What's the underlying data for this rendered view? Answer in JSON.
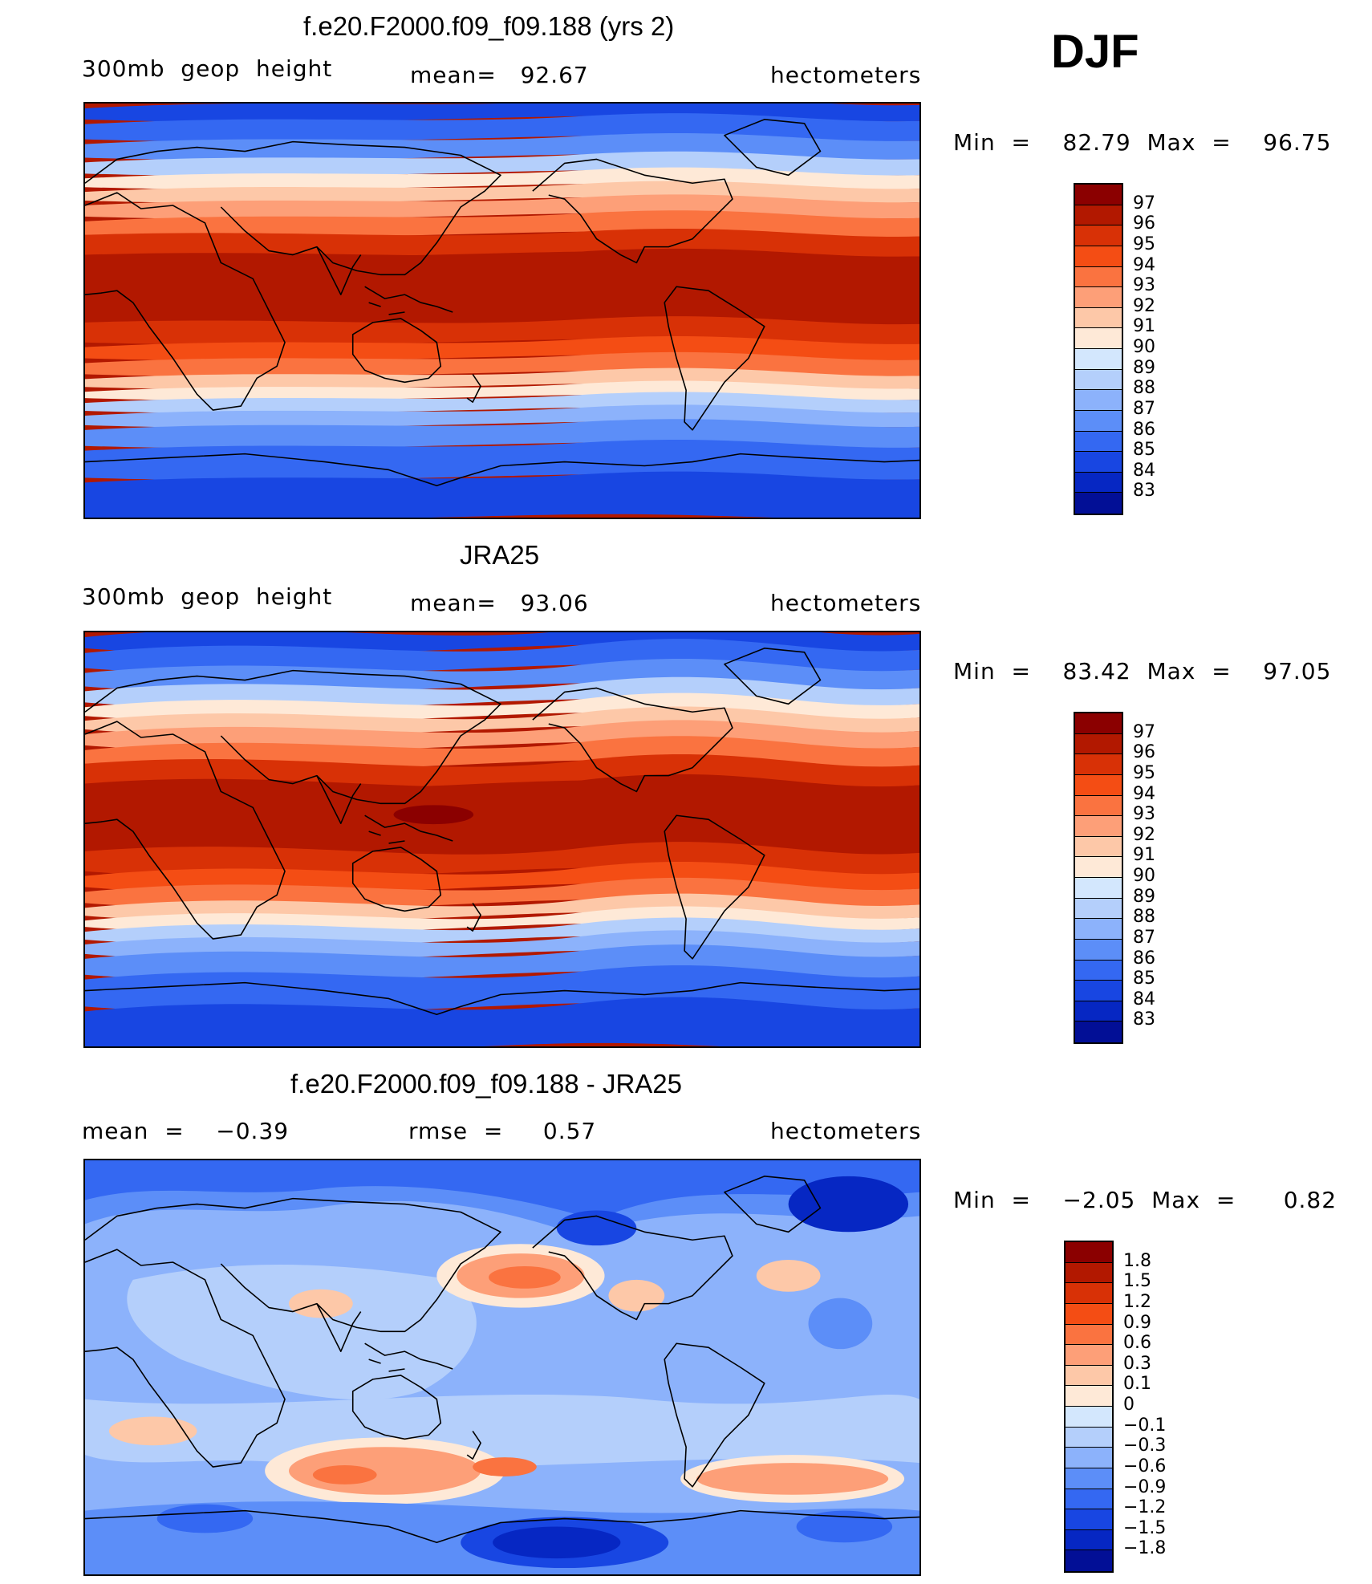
{
  "season": "DJF",
  "panels": [
    {
      "title": "f.e20.F2000.f09_f09.188 (yrs 2)",
      "left_label": "300mb  geop  height",
      "center_label": "mean=   92.67",
      "right_label": "hectometers",
      "minmax": "Min  =    82.79  Max  =    96.75",
      "field": "model",
      "colorbar": {
        "colors": [
          "#8b0000",
          "#b21800",
          "#d83106",
          "#f44d14",
          "#fa7340",
          "#fd9f78",
          "#fdc8a8",
          "#fee9d7",
          "#d3e7fd",
          "#b4cffb",
          "#8cb2fb",
          "#5c8ef8",
          "#3468f2",
          "#1846e2",
          "#0627c3",
          "#020f96"
        ],
        "labels": [
          "97",
          "96",
          "95",
          "94",
          "93",
          "92",
          "91",
          "90",
          "89",
          "88",
          "87",
          "86",
          "85",
          "84",
          "83"
        ]
      }
    },
    {
      "title": "JRA25",
      "left_label": "300mb  geop  height",
      "center_label": "mean=   93.06",
      "right_label": "hectometers",
      "minmax": "Min  =    83.42  Max  =    97.05",
      "field": "obs",
      "colorbar": {
        "colors": [
          "#8b0000",
          "#b21800",
          "#d83106",
          "#f44d14",
          "#fa7340",
          "#fd9f78",
          "#fdc8a8",
          "#fee9d7",
          "#d3e7fd",
          "#b4cffb",
          "#8cb2fb",
          "#5c8ef8",
          "#3468f2",
          "#1846e2",
          "#0627c3",
          "#020f96"
        ],
        "labels": [
          "97",
          "96",
          "95",
          "94",
          "93",
          "92",
          "91",
          "90",
          "89",
          "88",
          "87",
          "86",
          "85",
          "84",
          "83"
        ]
      }
    },
    {
      "title": "f.e20.F2000.f09_f09.188 - JRA25",
      "left_label": "mean  =    −0.39",
      "center_label": "rmse  =     0.57",
      "right_label": "hectometers",
      "minmax": "Min  =    −2.05  Max  =      0.82",
      "field": "diff",
      "colorbar": {
        "colors": [
          "#8b0000",
          "#b21800",
          "#d83106",
          "#f44d14",
          "#fa7340",
          "#fd9f78",
          "#fdc8a8",
          "#fee9d7",
          "#d3e7fd",
          "#b4cffb",
          "#8cb2fb",
          "#5c8ef8",
          "#3468f2",
          "#1846e2",
          "#0627c3",
          "#020f96"
        ],
        "labels": [
          "1.8",
          "1.5",
          "1.2",
          "0.9",
          "0.6",
          "0.3",
          "0.1",
          "0",
          "−0.1",
          "−0.3",
          "−0.6",
          "−0.9",
          "−1.2",
          "−1.5",
          "−1.8"
        ]
      }
    }
  ]
}
